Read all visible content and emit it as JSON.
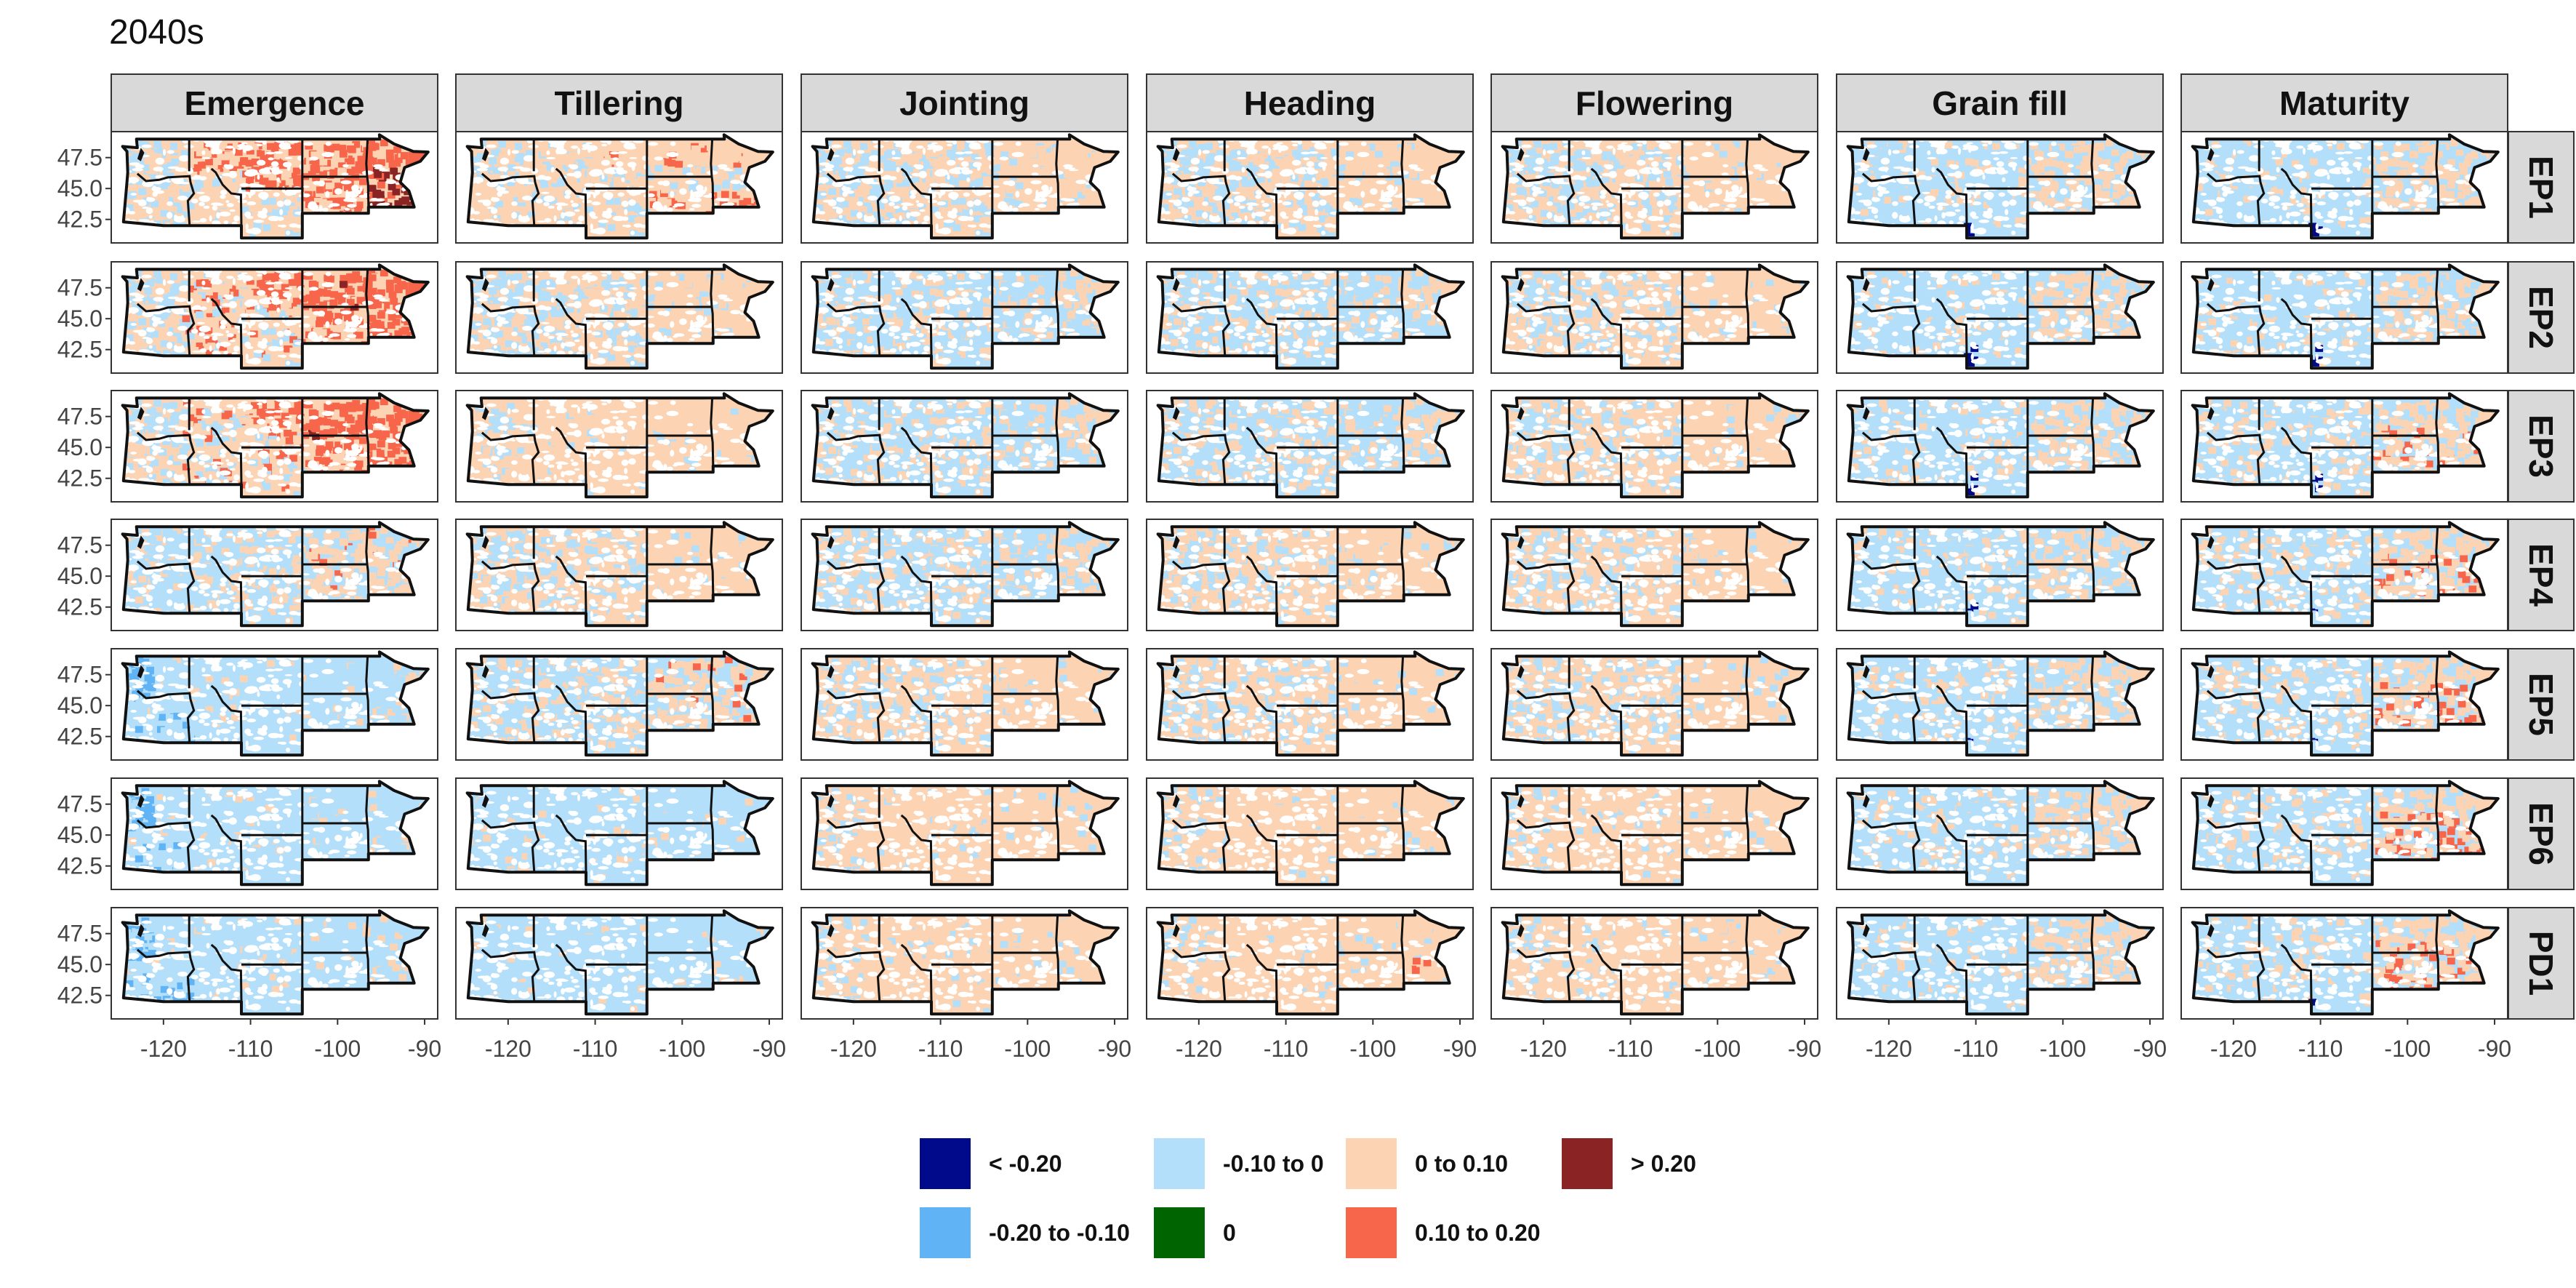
{
  "chart_data": {
    "type": "heatmap",
    "title": "2040s",
    "columns": [
      "Emergence",
      "Tillering",
      "Jointing",
      "Heading",
      "Flowering",
      "Grain fill",
      "Maturity"
    ],
    "rows": [
      "EP1",
      "EP2",
      "EP3",
      "EP4",
      "EP5",
      "EP6",
      "PD1"
    ],
    "x_ticks": [
      "-120",
      "-110",
      "-100",
      "-90"
    ],
    "x_tick_values": [
      -120,
      -110,
      -100,
      -90
    ],
    "y_ticks": [
      "47.5",
      "45.0",
      "42.5"
    ],
    "y_tick_values": [
      47.5,
      45.0,
      42.5
    ],
    "xlim": [
      -126,
      -88.5
    ],
    "ylim": [
      40.6,
      49.6
    ],
    "legend": {
      "position": "bottom",
      "items": [
        {
          "label": "< -0.20",
          "color": "#000a8a"
        },
        {
          "label": "-0.20 to -0.10",
          "color": "#60b4f6"
        },
        {
          "label": "-0.10 to 0",
          "color": "#b3dffa"
        },
        {
          "label": "0",
          "color": "#006400"
        },
        {
          "label": "0 to 0.10",
          "color": "#fcd4b4"
        },
        {
          "label": "0.10 to 0.20",
          "color": "#f7654b"
        },
        {
          "label": "> 0.20",
          "color": "#8a2424"
        }
      ]
    },
    "panels": [
      [
        "hot_east",
        "mixed_warm",
        "warm_blue_west",
        "warm_blue_west",
        "warm_blue_west",
        "warm_east_dark",
        "warm_east_dark"
      ],
      [
        "hot_mid",
        "warm_blue_west",
        "blue_mixed",
        "blue_mixed",
        "warm_blue_west",
        "warm_east_dark",
        "warm_east_dark"
      ],
      [
        "hot_mid",
        "warm",
        "blue_mixed",
        "blue_mixed",
        "warm_blue_west",
        "warm_east_dark",
        "warm_east_red"
      ],
      [
        "blue_east_warm",
        "warm_blue_west",
        "blue_mixed",
        "warm_blue_west",
        "warm_blue_west",
        "warm_east_dark",
        "warm_east_red"
      ],
      [
        "blue_deep_west",
        "blue_east_warm",
        "warm_blue_west",
        "warm_blue_west",
        "warm_blue_west",
        "warm_east_dark",
        "warm_east_red"
      ],
      [
        "blue_deep_west",
        "blue",
        "warm",
        "warm",
        "warm",
        "warm_east_dark",
        "warm_east_red"
      ],
      [
        "blue_deep_west",
        "blue",
        "warm",
        "warm_spot",
        "warm",
        "warm_east_dark",
        "warm_east_red"
      ]
    ]
  }
}
